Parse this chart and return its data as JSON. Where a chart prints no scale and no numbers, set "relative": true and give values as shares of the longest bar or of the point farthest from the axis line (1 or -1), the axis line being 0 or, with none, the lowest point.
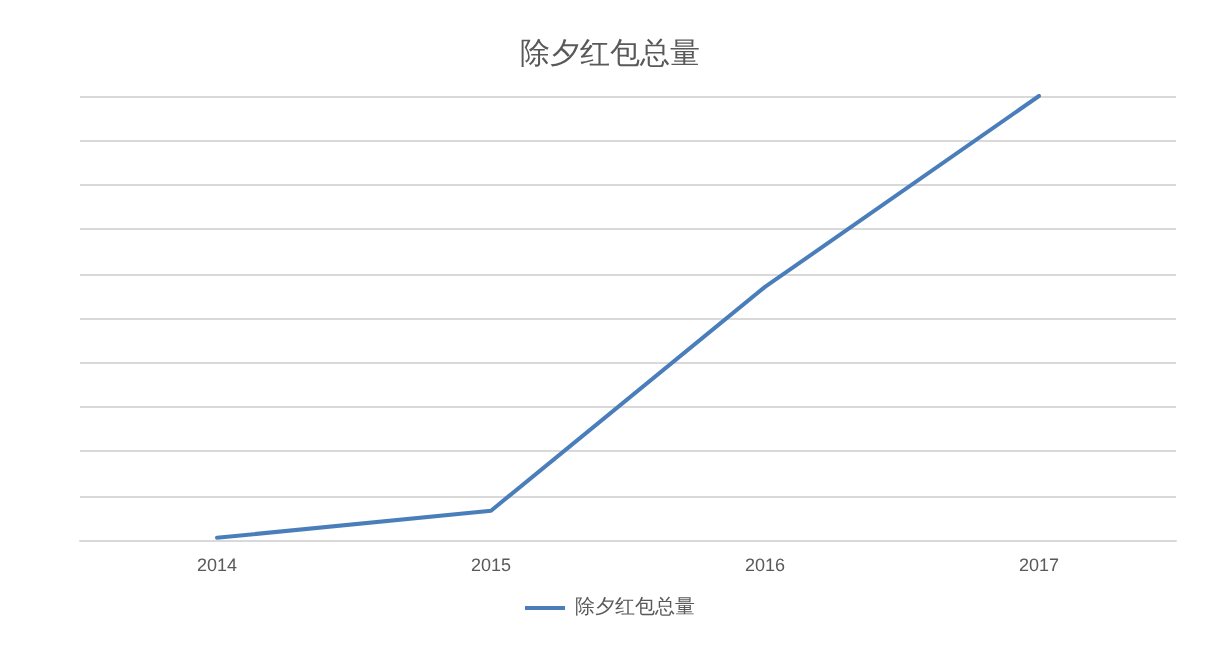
{
  "chart_data": {
    "type": "line",
    "title": "除夕红包总量",
    "categories": [
      "2014",
      "2015",
      "2016",
      "2017"
    ],
    "series": [
      {
        "name": "除夕红包总量",
        "color": "#4a7ebb",
        "values": [
          0.005,
          0.066,
          0.57,
          1
        ]
      }
    ],
    "relative": true,
    "grid": "y",
    "legend": "bottom",
    "marker": "none"
  }
}
